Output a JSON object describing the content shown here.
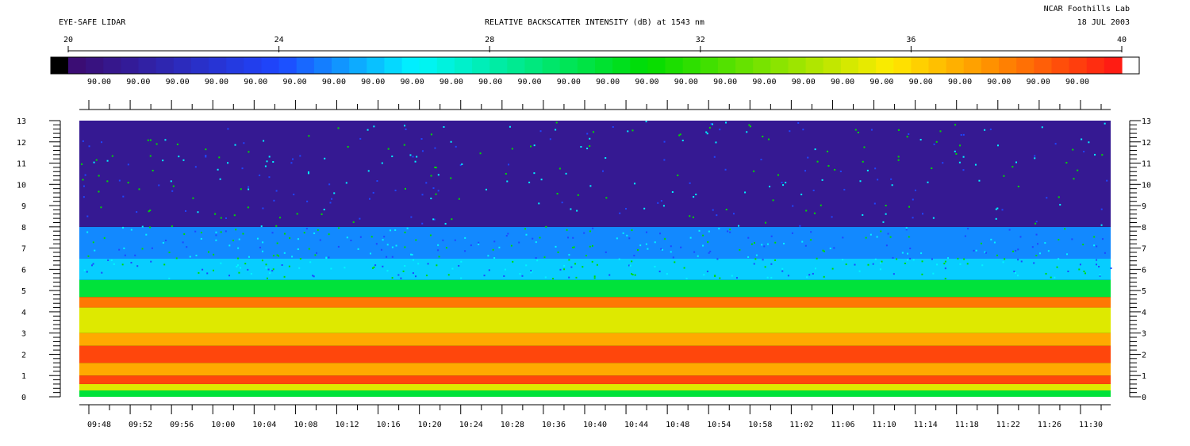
{
  "header": {
    "left_title": "EYE-SAFE LIDAR",
    "center_title": "RELATIVE BACKSCATTER INTENSITY (dB) at 1543 nm",
    "site": "NCAR Foothills Lab",
    "date": "18 JUL 2003"
  },
  "colorbar": {
    "min": 20,
    "max": 40,
    "tick_labels": [
      "20",
      "24",
      "28",
      "32",
      "36",
      "40"
    ],
    "elevation_labels": [
      "90.00",
      "90.00",
      "90.00",
      "90.00",
      "90.00",
      "90.00",
      "90.00",
      "90.00",
      "90.00",
      "90.00",
      "90.00",
      "90.00",
      "90.00",
      "90.00",
      "90.00",
      "90.00",
      "90.00",
      "90.00",
      "90.00",
      "90.00",
      "90.00",
      "90.00",
      "90.00",
      "90.00",
      "90.00",
      "90.00"
    ]
  },
  "chart_data": {
    "type": "heatmap",
    "title": "RELATIVE BACKSCATTER INTENSITY (dB) at 1543 nm",
    "xlabel": "",
    "ylabel": "",
    "x_tick_labels": [
      "09:48",
      "09:52",
      "09:56",
      "10:00",
      "10:04",
      "10:08",
      "10:12",
      "10:16",
      "10:20",
      "10:24",
      "10:28",
      "10:36",
      "10:40",
      "10:44",
      "10:48",
      "10:54",
      "10:58",
      "11:02",
      "11:06",
      "11:10",
      "11:14",
      "11:18",
      "11:22",
      "11:26",
      "11:30"
    ],
    "y_ticks": [
      0,
      1,
      2,
      3,
      4,
      5,
      6,
      7,
      8,
      9,
      10,
      11,
      12,
      13
    ],
    "ylim": [
      0,
      13
    ],
    "colorscale_db": [
      20,
      40
    ],
    "layers": [
      {
        "altitude_range": [
          0.0,
          0.3
        ],
        "db": 30
      },
      {
        "altitude_range": [
          0.3,
          0.6
        ],
        "db": 35
      },
      {
        "altitude_range": [
          0.6,
          1.0
        ],
        "db": 39
      },
      {
        "altitude_range": [
          1.0,
          1.6
        ],
        "db": 37
      },
      {
        "altitude_range": [
          1.6,
          2.4
        ],
        "db": 39
      },
      {
        "altitude_range": [
          2.4,
          3.0
        ],
        "db": 37
      },
      {
        "altitude_range": [
          3.0,
          4.2
        ],
        "db": 35
      },
      {
        "altitude_range": [
          4.2,
          4.7
        ],
        "db": 38
      },
      {
        "altitude_range": [
          4.7,
          5.5
        ],
        "db": 30
      },
      {
        "altitude_range": [
          5.5,
          6.5
        ],
        "db": 26
      },
      {
        "altitude_range": [
          6.5,
          8.0
        ],
        "db": 25
      },
      {
        "altitude_range": [
          8.0,
          13.0
        ],
        "db": 21
      }
    ],
    "colors": {
      "black": "#000000",
      "purple": "#3c0a6e",
      "blue": "#1e46ff",
      "cyan": "#00f5ff",
      "green": "#00dc00",
      "yellow": "#ffeb00",
      "orange": "#ff8c00",
      "red": "#ff1414"
    }
  }
}
